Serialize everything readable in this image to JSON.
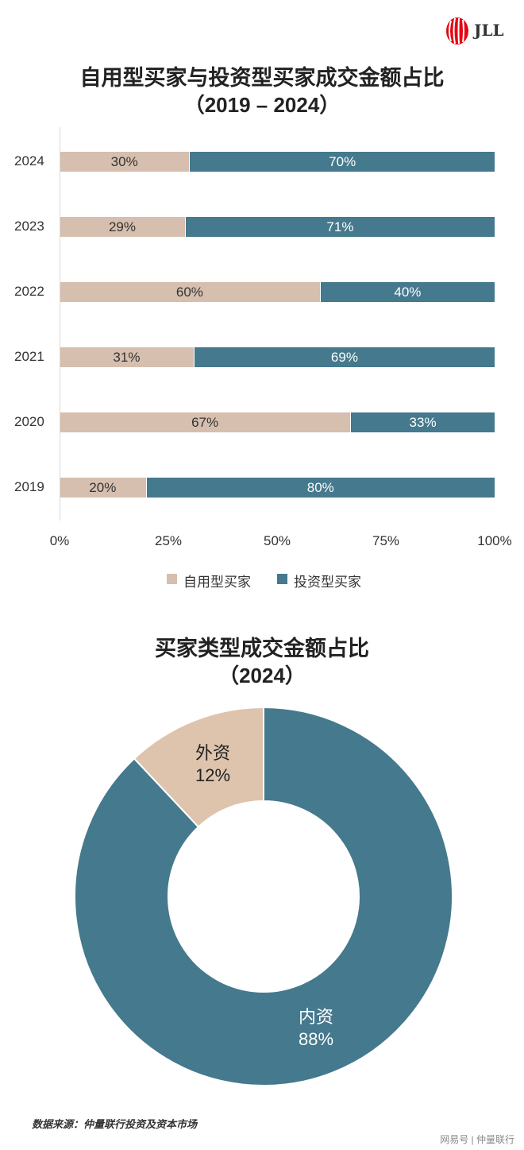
{
  "logo": {
    "text": "JLL"
  },
  "chart_data": [
    {
      "type": "bar",
      "stacked": true,
      "orientation": "horizontal",
      "title": "自用型买家与投资型买家成交金额占比",
      "subtitle": "（2019 – 2024）",
      "categories": [
        "2024",
        "2023",
        "2022",
        "2021",
        "2020",
        "2019"
      ],
      "series": [
        {
          "name": "自用型买家",
          "values": [
            30,
            29,
            60,
            31,
            67,
            20
          ],
          "labels": [
            "30%",
            "29%",
            "60%",
            "31%",
            "67%",
            "20%"
          ],
          "color": "#d6bfae"
        },
        {
          "name": "投资型买家",
          "values": [
            70,
            71,
            40,
            69,
            33,
            80
          ],
          "labels": [
            "70%",
            "71%",
            "40%",
            "69%",
            "33%",
            "80%"
          ],
          "color": "#45798d"
        }
      ],
      "xlim": [
        0,
        100
      ],
      "xticks": [
        "0%",
        "25%",
        "50%",
        "75%",
        "100%"
      ],
      "legend": "bottom"
    },
    {
      "type": "pie",
      "donut": true,
      "title": "买家类型成交金额占比",
      "subtitle": "（2024）",
      "slices": [
        {
          "name": "外资",
          "value": 12,
          "label": "12%",
          "color": "#dec4ad"
        },
        {
          "name": "内资",
          "value": 88,
          "label": "88%",
          "color": "#45798d"
        }
      ]
    }
  ],
  "source": "数据来源：仲量联行投资及资本市场",
  "watermark": "网易号 | 仲量联行"
}
